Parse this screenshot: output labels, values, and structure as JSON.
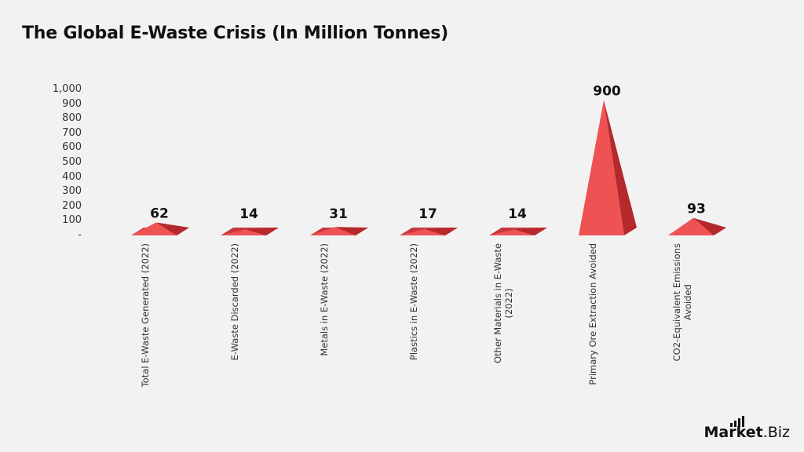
{
  "title": "The Global E-Waste Crisis (In Million Tonnes)",
  "yaxis": {
    "ticks": [
      "1,000",
      "900",
      "800",
      "700",
      "600",
      "500",
      "400",
      "300",
      "200",
      "100",
      "-"
    ]
  },
  "categories": [
    {
      "label_lines": [
        "Total E-Waste Generated (2022)"
      ],
      "value_label": "62"
    },
    {
      "label_lines": [
        "E-Waste Discarded (2022)"
      ],
      "value_label": "14"
    },
    {
      "label_lines": [
        "Metals in E-Waste (2022)"
      ],
      "value_label": "31"
    },
    {
      "label_lines": [
        "Plastics in E-Waste (2022)"
      ],
      "value_label": "17"
    },
    {
      "label_lines": [
        "Other Materials in E-Waste",
        "(2022)"
      ],
      "value_label": "14"
    },
    {
      "label_lines": [
        "Primary Ore Extraction Avoided"
      ],
      "value_label": "900"
    },
    {
      "label_lines": [
        "CO2-Equivalent Emissions",
        "Avoided"
      ],
      "value_label": "93"
    }
  ],
  "logo": {
    "part1": "Market",
    "part2": ".Biz"
  },
  "colors": {
    "front": "#ee5253",
    "side": "#b5282c",
    "background": "#f2f2f2"
  },
  "chart_data": {
    "type": "bar",
    "subtype": "3d-pyramid",
    "title": "The Global E-Waste Crisis (In Million Tonnes)",
    "categories": [
      "Total E-Waste Generated (2022)",
      "E-Waste Discarded (2022)",
      "Metals in E-Waste (2022)",
      "Plastics in E-Waste (2022)",
      "Other Materials in E-Waste (2022)",
      "Primary Ore Extraction Avoided",
      "CO2-Equivalent Emissions Avoided"
    ],
    "values": [
      62,
      14,
      31,
      17,
      14,
      900,
      93
    ],
    "xlabel": "",
    "ylabel": "",
    "ylim": [
      0,
      1000
    ],
    "yticks": [
      0,
      100,
      200,
      300,
      400,
      500,
      600,
      700,
      800,
      900,
      1000
    ],
    "data_labels": true,
    "grid": false,
    "legend": null
  }
}
